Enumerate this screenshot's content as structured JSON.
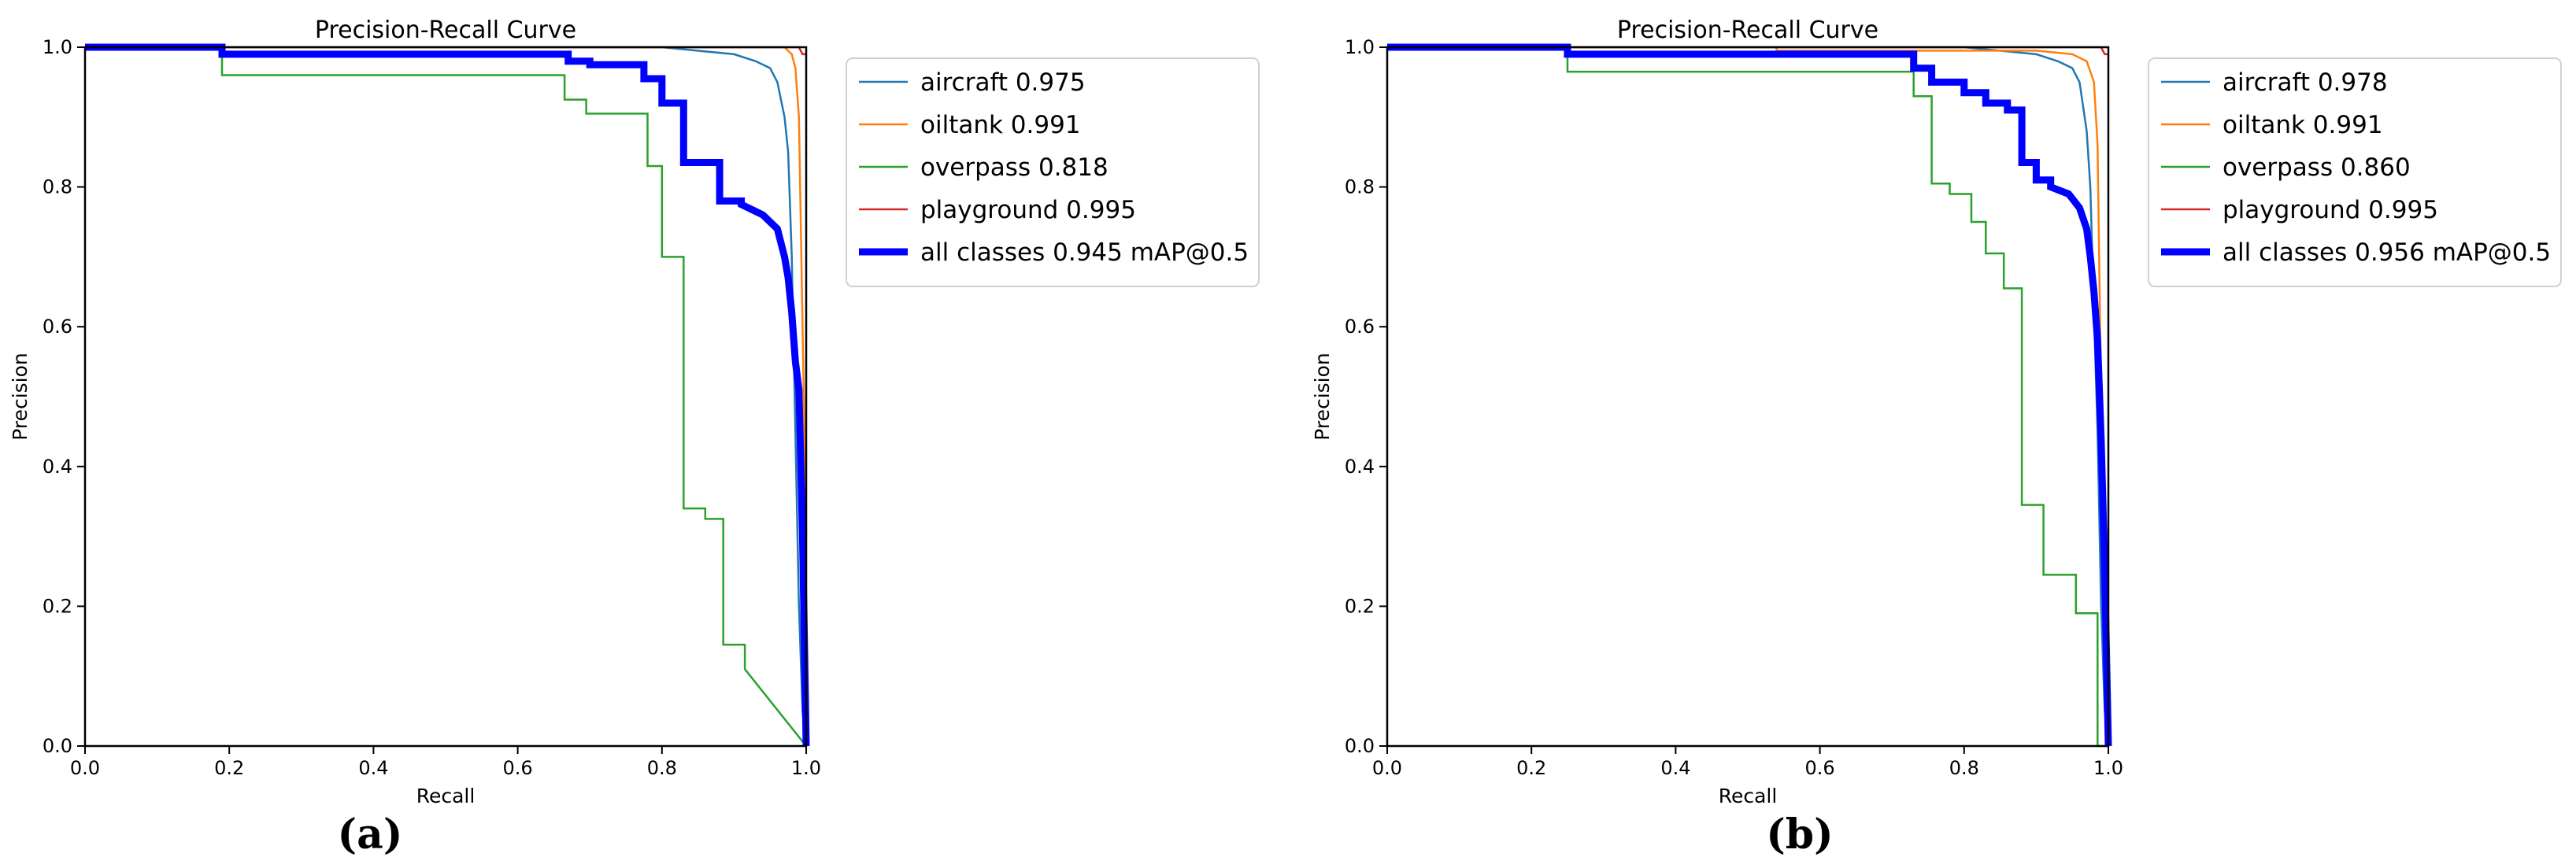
{
  "chart_data": [
    {
      "type": "line",
      "title": "Precision-Recall Curve",
      "xlabel": "Recall",
      "ylabel": "Precision",
      "xlim": [
        0,
        1
      ],
      "ylim": [
        0,
        1
      ],
      "xticks": [
        "0.0",
        "0.2",
        "0.4",
        "0.6",
        "0.8",
        "1.0"
      ],
      "yticks": [
        "0.0",
        "0.2",
        "0.4",
        "0.6",
        "0.8",
        "1.0"
      ],
      "grid": false,
      "legend_position": "outside-right-top",
      "panel_label": "(a)",
      "series": [
        {
          "name": "aircraft 0.975",
          "color": "#1f77b4",
          "width": "thin",
          "x": [
            0,
            0.8,
            0.9,
            0.93,
            0.95,
            0.96,
            0.97,
            0.975,
            0.98,
            0.985,
            0.99,
            0.995,
            1.0
          ],
          "y": [
            1.0,
            1.0,
            0.99,
            0.98,
            0.97,
            0.95,
            0.9,
            0.85,
            0.7,
            0.45,
            0.2,
            0.05,
            0.0
          ]
        },
        {
          "name": "oiltank 0.991",
          "color": "#ff7f0e",
          "width": "thin",
          "x": [
            0,
            0.9,
            0.97,
            0.98,
            0.985,
            0.99,
            0.995,
            1.0
          ],
          "y": [
            1.0,
            1.0,
            1.0,
            0.99,
            0.97,
            0.9,
            0.6,
            0.3
          ]
        },
        {
          "name": "overpass 0.818",
          "color": "#2ca02c",
          "width": "thin",
          "x": [
            0,
            0.19,
            0.19,
            0.665,
            0.665,
            0.695,
            0.695,
            0.78,
            0.78,
            0.8,
            0.8,
            0.83,
            0.83,
            0.86,
            0.86,
            0.885,
            0.885,
            0.915,
            0.915,
            1.0
          ],
          "y": [
            1.0,
            1.0,
            0.96,
            0.96,
            0.925,
            0.925,
            0.905,
            0.905,
            0.83,
            0.83,
            0.7,
            0.7,
            0.34,
            0.34,
            0.325,
            0.325,
            0.145,
            0.145,
            0.11,
            0.0
          ]
        },
        {
          "name": "playground 0.995",
          "color": "#d62728",
          "width": "thin",
          "x": [
            0,
            0.99,
            0.995,
            1.0
          ],
          "y": [
            1.0,
            1.0,
            0.99,
            0.99
          ]
        },
        {
          "name": "all classes 0.945 mAP@0.5",
          "color": "#0000ff",
          "width": "thick",
          "x": [
            0,
            0.19,
            0.19,
            0.67,
            0.67,
            0.7,
            0.7,
            0.775,
            0.775,
            0.8,
            0.8,
            0.83,
            0.83,
            0.88,
            0.88,
            0.91,
            0.91,
            0.94,
            0.96,
            0.97,
            0.975,
            0.98,
            0.985,
            0.99,
            0.995,
            1.0
          ],
          "y": [
            1.0,
            1.0,
            0.99,
            0.99,
            0.98,
            0.98,
            0.975,
            0.975,
            0.955,
            0.955,
            0.92,
            0.92,
            0.835,
            0.835,
            0.78,
            0.78,
            0.775,
            0.76,
            0.74,
            0.7,
            0.67,
            0.62,
            0.55,
            0.51,
            0.3,
            0.0
          ]
        }
      ]
    },
    {
      "type": "line",
      "title": "Precision-Recall Curve",
      "xlabel": "Recall",
      "ylabel": "Precision",
      "xlim": [
        0,
        1
      ],
      "ylim": [
        0,
        1
      ],
      "xticks": [
        "0.0",
        "0.2",
        "0.4",
        "0.6",
        "0.8",
        "1.0"
      ],
      "yticks": [
        "0.0",
        "0.2",
        "0.4",
        "0.6",
        "0.8",
        "1.0"
      ],
      "grid": false,
      "legend_position": "outside-right-top",
      "panel_label": "(b)",
      "series": [
        {
          "name": "aircraft 0.978",
          "color": "#1f77b4",
          "width": "thin",
          "x": [
            0,
            0.8,
            0.9,
            0.93,
            0.95,
            0.96,
            0.97,
            0.975,
            0.98,
            0.985,
            0.99,
            0.995,
            1.0
          ],
          "y": [
            1.0,
            1.0,
            0.99,
            0.98,
            0.97,
            0.95,
            0.88,
            0.8,
            0.62,
            0.45,
            0.2,
            0.05,
            0.0
          ]
        },
        {
          "name": "oiltank 0.991",
          "color": "#ff7f0e",
          "width": "thin",
          "x": [
            0,
            0.54,
            0.54,
            0.9,
            0.95,
            0.97,
            0.98,
            0.985,
            0.99,
            1.0
          ],
          "y": [
            1.0,
            1.0,
            0.995,
            0.995,
            0.99,
            0.98,
            0.95,
            0.86,
            0.5,
            0.2
          ]
        },
        {
          "name": "overpass 0.860",
          "color": "#2ca02c",
          "width": "thin",
          "x": [
            0,
            0.25,
            0.25,
            0.73,
            0.73,
            0.755,
            0.755,
            0.78,
            0.78,
            0.81,
            0.81,
            0.83,
            0.83,
            0.855,
            0.855,
            0.88,
            0.88,
            0.91,
            0.91,
            0.955,
            0.955,
            0.985,
            0.985,
            1.0
          ],
          "y": [
            1.0,
            1.0,
            0.965,
            0.965,
            0.93,
            0.93,
            0.805,
            0.805,
            0.79,
            0.79,
            0.75,
            0.75,
            0.705,
            0.705,
            0.655,
            0.655,
            0.345,
            0.345,
            0.245,
            0.245,
            0.19,
            0.19,
            0.0,
            0.0
          ]
        },
        {
          "name": "playground 0.995",
          "color": "#d62728",
          "width": "thin",
          "x": [
            0,
            0.99,
            0.995,
            1.0
          ],
          "y": [
            1.0,
            1.0,
            0.99,
            0.99
          ]
        },
        {
          "name": "all classes 0.956 mAP@0.5",
          "color": "#0000ff",
          "width": "thick",
          "x": [
            0,
            0.25,
            0.25,
            0.73,
            0.73,
            0.755,
            0.755,
            0.8,
            0.8,
            0.83,
            0.83,
            0.86,
            0.86,
            0.88,
            0.88,
            0.9,
            0.9,
            0.92,
            0.92,
            0.945,
            0.96,
            0.97,
            0.975,
            0.98,
            0.985,
            0.99,
            0.995,
            1.0
          ],
          "y": [
            1.0,
            1.0,
            0.99,
            0.99,
            0.97,
            0.97,
            0.95,
            0.95,
            0.935,
            0.935,
            0.92,
            0.92,
            0.91,
            0.91,
            0.835,
            0.835,
            0.81,
            0.81,
            0.8,
            0.79,
            0.77,
            0.74,
            0.7,
            0.65,
            0.58,
            0.44,
            0.25,
            0.0
          ]
        }
      ]
    }
  ]
}
